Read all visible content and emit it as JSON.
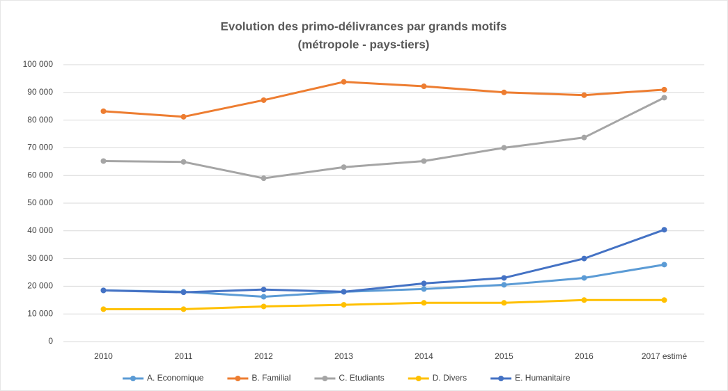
{
  "chart_data": {
    "type": "line",
    "title": "Evolution des primo-délivrances par grands motifs",
    "subtitle": "(métropole - pays-tiers)",
    "categories": [
      "2010",
      "2011",
      "2012",
      "2013",
      "2014",
      "2015",
      "2016",
      "2017 estimé"
    ],
    "series": [
      {
        "name": "A. Economique",
        "color": "#5b9bd5",
        "values": [
          18500,
          18000,
          16200,
          18000,
          19000,
          20500,
          23000,
          27800
        ]
      },
      {
        "name": "B. Familial",
        "color": "#ed7d31",
        "values": [
          83200,
          81200,
          87200,
          93800,
          92200,
          90000,
          89000,
          91000
        ]
      },
      {
        "name": "C. Etudiants",
        "color": "#a5a5a5",
        "values": [
          65200,
          64900,
          59000,
          63000,
          65200,
          70000,
          73700,
          88100
        ]
      },
      {
        "name": "D. Divers",
        "color": "#ffc000",
        "values": [
          11700,
          11700,
          12700,
          13300,
          14000,
          14000,
          15000,
          15000
        ]
      },
      {
        "name": "E. Humanitaire",
        "color": "#4472c4",
        "values": [
          18500,
          17800,
          18800,
          18000,
          21000,
          23000,
          30000,
          40400
        ]
      }
    ],
    "ylim": [
      0,
      100000
    ],
    "yticks": [
      0,
      {
        "value": 10000,
        "label": "10 000"
      },
      {
        "value": 20000,
        "label": "20 000"
      },
      {
        "value": 30000,
        "label": "30 000"
      },
      {
        "value": 40000,
        "label": "40 000"
      },
      {
        "value": 50000,
        "label": "50 000"
      },
      {
        "value": 60000,
        "label": "60 000"
      },
      {
        "value": 70000,
        "label": "70 000"
      },
      {
        "value": 80000,
        "label": "80 000"
      },
      {
        "value": 90000,
        "label": "90 000"
      },
      {
        "value": 100000,
        "label": "100 000"
      }
    ],
    "grid": true,
    "legend": "bottom"
  }
}
